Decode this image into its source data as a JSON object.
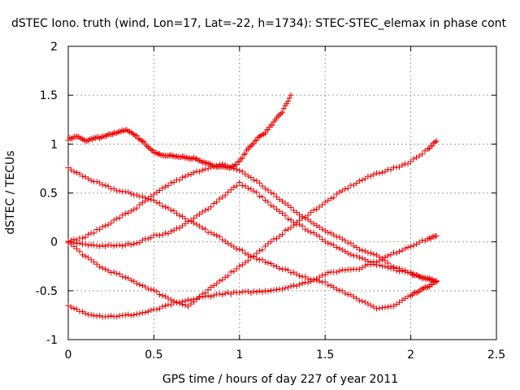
{
  "chart_data": {
    "type": "scatter",
    "title": "dSTEC Iono. truth (wind, Lon=17, Lat=-22, h=1734): STEC-STEC_elemax in phase cont",
    "xlabel": "GPS time / hours of day 227 of year 2011",
    "ylabel": "dSTEC  / TECUs",
    "xlim": [
      0,
      2.5
    ],
    "ylim": [
      -1,
      2
    ],
    "x_ticks": [
      "0",
      "0.5",
      "1",
      "1.5",
      "2",
      "2.5"
    ],
    "y_ticks": [
      "-1",
      "-0.5",
      "0",
      "0.5",
      "1",
      "1.5",
      "2"
    ],
    "grid": true,
    "marker": "+",
    "marker_color": "#ee0000",
    "series": [
      {
        "x": [
          0.0,
          0.05,
          0.1,
          0.15,
          0.2,
          0.25,
          0.3,
          0.35,
          0.4,
          0.45,
          0.5,
          0.55,
          0.6,
          0.65,
          0.7,
          0.75,
          0.8,
          0.85,
          0.9,
          0.95,
          1.0,
          1.05,
          1.1,
          1.15,
          1.2,
          1.25,
          1.3
        ],
        "y": [
          1.05,
          1.08,
          1.03,
          1.06,
          1.07,
          1.1,
          1.13,
          1.14,
          1.08,
          1.0,
          0.92,
          0.88,
          0.88,
          0.87,
          0.86,
          0.85,
          0.8,
          0.78,
          0.77,
          0.76,
          0.82,
          0.95,
          1.05,
          1.12,
          1.22,
          1.33,
          1.5
        ]
      },
      {
        "x": [
          0.0,
          0.1,
          0.2,
          0.3,
          0.4,
          0.5,
          0.6,
          0.7,
          0.8,
          0.9,
          1.0,
          1.1,
          1.2,
          1.3,
          1.4,
          1.5,
          1.6,
          1.7,
          1.8,
          1.9,
          2.0,
          2.05,
          2.1,
          2.15
        ],
        "y": [
          0.75,
          0.66,
          0.58,
          0.52,
          0.48,
          0.42,
          0.33,
          0.22,
          0.12,
          0.03,
          -0.08,
          -0.17,
          -0.24,
          -0.31,
          -0.37,
          -0.42,
          -0.5,
          -0.6,
          -0.68,
          -0.66,
          -0.55,
          -0.5,
          -0.46,
          -0.4
        ]
      },
      {
        "x": [
          0.0,
          0.1,
          0.2,
          0.3,
          0.4,
          0.5,
          0.6,
          0.7,
          0.8,
          0.9,
          1.0,
          1.1,
          1.2,
          1.3,
          1.4,
          1.5,
          1.6,
          1.7,
          1.8,
          1.9,
          2.0,
          2.1,
          2.15
        ],
        "y": [
          0.0,
          -0.03,
          -0.04,
          -0.04,
          -0.01,
          0.06,
          0.1,
          0.2,
          0.32,
          0.46,
          0.6,
          0.5,
          0.35,
          0.22,
          0.12,
          0.01,
          -0.08,
          -0.16,
          -0.24,
          -0.28,
          -0.32,
          -0.37,
          -0.4
        ]
      },
      {
        "x": [
          0.0,
          0.1,
          0.2,
          0.3,
          0.4,
          0.5,
          0.6,
          0.7,
          0.8,
          0.9,
          1.0,
          1.1,
          1.2,
          1.3,
          1.4,
          1.5,
          1.6,
          1.7,
          1.8,
          1.9,
          2.0,
          2.05,
          2.1,
          2.15
        ],
        "y": [
          0.0,
          0.05,
          0.15,
          0.25,
          0.35,
          0.48,
          0.6,
          0.68,
          0.75,
          0.79,
          0.73,
          0.62,
          0.48,
          0.35,
          0.22,
          0.12,
          0.03,
          -0.07,
          -0.14,
          -0.26,
          -0.32,
          -0.36,
          -0.38,
          -0.41
        ]
      },
      {
        "x": [
          0.0,
          0.1,
          0.2,
          0.3,
          0.4,
          0.5,
          0.6,
          0.7,
          0.8,
          0.9,
          1.0,
          1.1,
          1.2,
          1.3,
          1.4,
          1.5,
          1.6,
          1.7,
          1.8,
          1.9,
          2.0,
          2.1,
          2.15
        ],
        "y": [
          0.0,
          -0.15,
          -0.27,
          -0.34,
          -0.42,
          -0.5,
          -0.59,
          -0.66,
          -0.52,
          -0.38,
          -0.25,
          -0.12,
          0.02,
          0.15,
          0.28,
          0.4,
          0.52,
          0.62,
          0.7,
          0.75,
          0.82,
          0.95,
          1.03
        ]
      },
      {
        "x": [
          0.0,
          0.1,
          0.2,
          0.3,
          0.4,
          0.5,
          0.6,
          0.7,
          0.8,
          0.9,
          1.0,
          1.1,
          1.2,
          1.3,
          1.4,
          1.5,
          1.6,
          1.7,
          1.8,
          1.9,
          2.0,
          2.1,
          2.15
        ],
        "y": [
          -0.66,
          -0.73,
          -0.76,
          -0.76,
          -0.74,
          -0.7,
          -0.64,
          -0.6,
          -0.56,
          -0.53,
          -0.52,
          -0.51,
          -0.49,
          -0.46,
          -0.41,
          -0.33,
          -0.29,
          -0.27,
          -0.2,
          -0.12,
          -0.04,
          0.03,
          0.06
        ]
      }
    ]
  }
}
